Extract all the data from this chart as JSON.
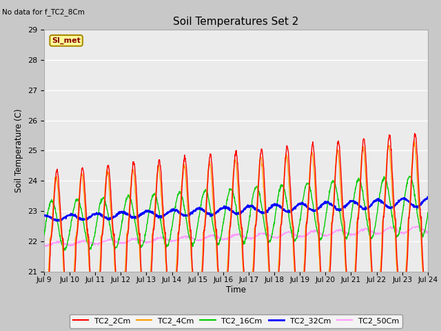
{
  "title": "Soil Temperatures Set 2",
  "no_data_label": "No data for f_TC2_8Cm",
  "si_met_label": "SI_met",
  "ylabel": "Soil Temperature (C)",
  "xlabel": "Time",
  "ylim": [
    21.0,
    29.0
  ],
  "yticks": [
    21.0,
    22.0,
    23.0,
    24.0,
    25.0,
    26.0,
    27.0,
    28.0,
    29.0
  ],
  "xtick_labels": [
    "Jul 9",
    "Jul 10",
    "Jul 11",
    "Jul 12",
    "Jul 13",
    "Jul 14",
    "Jul 15",
    "Jul 16",
    "Jul 17",
    "Jul 18",
    "Jul 19",
    "Jul 20",
    "Jul 21",
    "Jul 22",
    "Jul 23",
    "Jul 24"
  ],
  "plot_bg_color": "#ebebeb",
  "fig_bg_color": "#c8c8c8",
  "legend_entries": [
    "TC2_2Cm",
    "TC2_4Cm",
    "TC2_16Cm",
    "TC2_32Cm",
    "TC2_50Cm"
  ],
  "line_colors": [
    "#ff0000",
    "#ff9900",
    "#00cc00",
    "#0000ff",
    "#ff99ff"
  ],
  "days": 15,
  "n_points": 1440,
  "si_met_box_color": "#ffff99",
  "si_met_border_color": "#aa8800",
  "si_met_text_color": "#880000"
}
